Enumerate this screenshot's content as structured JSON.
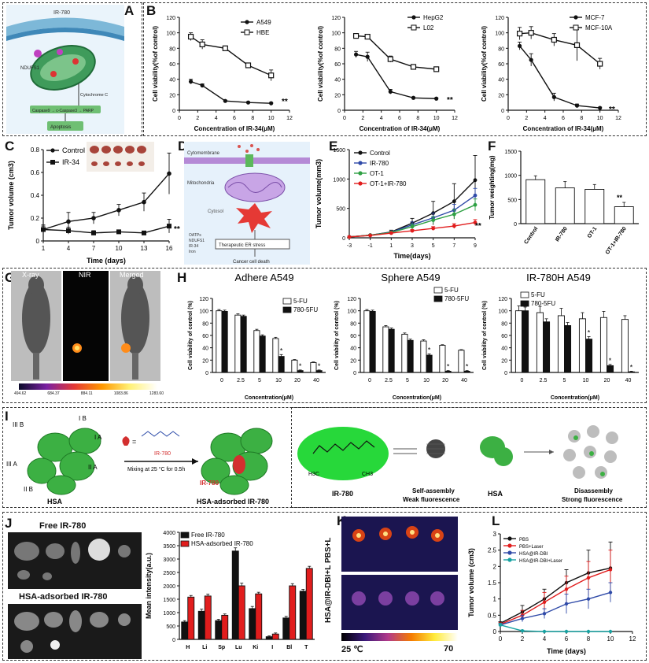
{
  "colors": {
    "black": "#111111",
    "red": "#e11d1d",
    "blue": "#2f4aa8",
    "green": "#2ea043",
    "teal": "#17a2a2",
    "darkred": "#c62828"
  },
  "panel_labels": {
    "A": "A",
    "B": "B",
    "C": "C",
    "D": "D",
    "E": "E",
    "F": "F",
    "G": "G",
    "H": "H",
    "I": "I",
    "J": "J",
    "K": "K",
    "L": "L"
  },
  "panelA": {
    "ir780": "IR-780",
    "apoptosis": "Apoptosis",
    "ndufs1": "NDUFS1",
    "cytc": "Cytochrome C",
    "casp": "Caspase9 → c-Caspase3 → PARP"
  },
  "panelD": {
    "membrane": "Cytomembrane",
    "mito": "Mitochondria",
    "cytosol": "Cytosol",
    "therapeutic": "Therapeutic ER stress",
    "death": "Cancer cell death",
    "legend": [
      "OATPs",
      "NDUFS1",
      "IR-34",
      "Iron"
    ]
  },
  "panelG": {
    "xray": "X-ray",
    "nir": "NIR",
    "merged": "Merged",
    "scale": [
      "494.62",
      "684.37",
      "884.11",
      "1083.86",
      "1283.60"
    ]
  },
  "panelI": {
    "domains": [
      "III B",
      "I B",
      "I A",
      "III A",
      "II A",
      "II B"
    ],
    "hsa": "HSA",
    "mixing": "Mixing at 25 °C for 0.5h",
    "ir780": "IR-780",
    "adsorbed": "HSA-adsorbed IR-780",
    "ir780_2": "IR-780",
    "selfassembly1": "Self-assembly",
    "selfassembly2": "Weak fluorescence",
    "hsa2": "HSA",
    "disassembly1": "Disassembly",
    "disassembly2": "Strong fluorescence",
    "h3c": "H3C",
    "ch3": "CH3",
    "eq": "="
  },
  "panelJ": {
    "free": "Free IR-780",
    "adsorbed": "HSA-adsorbed  IR-780"
  },
  "panelK": {
    "side": "HSA@IR-DBI+L PBS+L",
    "t0": "25 ℃",
    "t1": "70"
  },
  "chart_data": [
    {
      "id": "B1",
      "type": "line",
      "ylabel": "Cell viability(%of control)",
      "xlabel": "Concentration of IR-34(μM)",
      "xlim": [
        0,
        12
      ],
      "ylim": [
        0,
        120
      ],
      "xticks": [
        0,
        2,
        4,
        6,
        8,
        10,
        12
      ],
      "yticks": [
        0,
        20,
        40,
        60,
        80,
        100,
        120
      ],
      "annotation": "**",
      "series": [
        {
          "name": "A549",
          "x": [
            1.25,
            2.5,
            5,
            7.5,
            10
          ],
          "y": [
            37,
            32,
            12,
            10,
            9
          ],
          "err": [
            3,
            2,
            1,
            1,
            1
          ],
          "marker": "filled"
        },
        {
          "name": "HBE",
          "x": [
            1.25,
            2.5,
            5,
            7.5,
            10
          ],
          "y": [
            95,
            85,
            80,
            58,
            45
          ],
          "err": [
            5,
            6,
            3,
            3,
            7
          ],
          "marker": "square-open"
        }
      ]
    },
    {
      "id": "B2",
      "type": "line",
      "ylabel": "Cell viability(%of control)",
      "xlabel": "Concentration of IR-34(μM)",
      "xlim": [
        0,
        12
      ],
      "ylim": [
        0,
        120
      ],
      "xticks": [
        0,
        2,
        4,
        6,
        8,
        10,
        12
      ],
      "yticks": [
        0,
        20,
        40,
        60,
        80,
        100,
        120
      ],
      "annotation": "**",
      "series": [
        {
          "name": "HepG2",
          "x": [
            1.25,
            2.5,
            5,
            7.5,
            10
          ],
          "y": [
            72,
            69,
            24,
            16,
            15
          ],
          "err": [
            4,
            6,
            3,
            1,
            1
          ],
          "marker": "filled"
        },
        {
          "name": "L02",
          "x": [
            1.25,
            2.5,
            5,
            7.5,
            10
          ],
          "y": [
            96,
            95,
            66,
            56,
            53
          ],
          "err": [
            3,
            3,
            4,
            3,
            2
          ],
          "marker": "square-open"
        }
      ]
    },
    {
      "id": "B3",
      "type": "line",
      "ylabel": "Cell viability(%of control)",
      "xlabel": "Concentration of IR-34(μM)",
      "xlim": [
        0,
        12
      ],
      "ylim": [
        0,
        120
      ],
      "xticks": [
        0,
        2,
        4,
        6,
        8,
        10,
        12
      ],
      "yticks": [
        0,
        20,
        40,
        60,
        80,
        100,
        120
      ],
      "annotation": "**",
      "series": [
        {
          "name": "MCF-7",
          "x": [
            1.25,
            2.5,
            5,
            7.5,
            10
          ],
          "y": [
            83,
            65,
            17,
            6,
            3
          ],
          "err": [
            5,
            8,
            5,
            2,
            1
          ],
          "marker": "filled"
        },
        {
          "name": "MCF-10A",
          "x": [
            1.25,
            2.5,
            5,
            7.5,
            10
          ],
          "y": [
            99,
            100,
            91,
            84,
            60
          ],
          "err": [
            8,
            8,
            8,
            20,
            7
          ],
          "marker": "square-open"
        }
      ]
    },
    {
      "id": "C",
      "type": "line",
      "ylabel": "Tumor volume (cm3)",
      "xlabel": "Time (days)",
      "xticks": [
        1,
        4,
        7,
        10,
        13,
        16
      ],
      "xlim": [
        1,
        16
      ],
      "ylim": [
        0,
        0.8
      ],
      "yticks": [
        0,
        0.2,
        0.4,
        0.6,
        0.8
      ],
      "annotation": "**",
      "series": [
        {
          "name": "Control",
          "x": [
            1,
            4,
            7,
            10,
            13,
            16
          ],
          "y": [
            0.1,
            0.17,
            0.2,
            0.27,
            0.34,
            0.59
          ],
          "err": [
            0.03,
            0.08,
            0.05,
            0.05,
            0.08,
            0.18
          ],
          "marker": "filled"
        },
        {
          "name": "IR-34",
          "x": [
            1,
            4,
            7,
            10,
            13,
            16
          ],
          "y": [
            0.1,
            0.09,
            0.07,
            0.08,
            0.07,
            0.13
          ],
          "err": [
            0.04,
            0.03,
            0.02,
            0.01,
            0.01,
            0.06
          ],
          "marker": "square"
        }
      ]
    },
    {
      "id": "E",
      "type": "line",
      "ylabel": "Tumor volume(mm3)",
      "xlabel": "Time(days)",
      "xticks": [
        -3,
        -1,
        1,
        3,
        5,
        7,
        9
      ],
      "xlim": [
        -3,
        9
      ],
      "ylim": [
        0,
        1500
      ],
      "yticks": [
        0,
        500,
        1000,
        1500
      ],
      "annotation": "**",
      "series": [
        {
          "name": "Control",
          "color": "#111111",
          "x": [
            -3,
            -1,
            1,
            3,
            5,
            7,
            9
          ],
          "y": [
            15,
            45,
            100,
            250,
            420,
            620,
            980
          ],
          "err": [
            5,
            10,
            30,
            80,
            200,
            300,
            420
          ]
        },
        {
          "name": "IR-780",
          "color": "#2f4aa8",
          "x": [
            -3,
            -1,
            1,
            3,
            5,
            7,
            9
          ],
          "y": [
            15,
            45,
            95,
            220,
            340,
            470,
            720
          ],
          "err": [
            5,
            10,
            20,
            50,
            80,
            100,
            120
          ]
        },
        {
          "name": "OT-1",
          "color": "#2ea043",
          "x": [
            -3,
            -1,
            1,
            3,
            5,
            7,
            9
          ],
          "y": [
            15,
            45,
            90,
            190,
            300,
            400,
            560
          ],
          "err": [
            5,
            10,
            20,
            40,
            60,
            80,
            100
          ]
        },
        {
          "name": "OT-1+IR-780",
          "color": "#e11d1d",
          "x": [
            -3,
            -1,
            1,
            3,
            5,
            7,
            9
          ],
          "y": [
            15,
            40,
            80,
            120,
            160,
            200,
            260
          ],
          "err": [
            5,
            10,
            15,
            20,
            30,
            40,
            50
          ]
        }
      ]
    },
    {
      "id": "F",
      "type": "bar",
      "ylabel": "Tumor weighting(mg)",
      "categories": [
        "Control",
        "IR-780",
        "OT-1",
        "OT-1+IR-780"
      ],
      "values": [
        910,
        740,
        710,
        350
      ],
      "err": [
        80,
        130,
        100,
        90
      ],
      "ylim": [
        0,
        1500
      ],
      "yticks": [
        0,
        500,
        1000,
        1500
      ],
      "annotation": "**"
    },
    {
      "id": "H1",
      "type": "bar",
      "title": "Adhere A549",
      "ylabel": "Cell viability of control (%)",
      "xlabel": "Concentration(μM)",
      "categories": [
        "0",
        "2.5",
        "5",
        "10",
        "20",
        "40"
      ],
      "ylim": [
        0,
        120
      ],
      "yticks": [
        0,
        20,
        40,
        60,
        80,
        100,
        120
      ],
      "series": [
        {
          "name": "5-FU",
          "values": [
            100,
            93,
            68,
            55,
            20,
            16
          ],
          "err": [
            2,
            2,
            2,
            2,
            1,
            1
          ]
        },
        {
          "name": "780-5FU",
          "values": [
            99,
            91,
            59,
            26,
            3,
            3
          ],
          "err": [
            2,
            2,
            2,
            3,
            1,
            1
          ]
        }
      ],
      "stars": [
        3,
        4,
        5
      ]
    },
    {
      "id": "H2",
      "type": "bar",
      "title": "Sphere  A549",
      "ylabel": "Cell viability of control (%)",
      "xlabel": "Concentration(μM)",
      "categories": [
        "0",
        "2.5",
        "5",
        "10",
        "20",
        "40"
      ],
      "ylim": [
        0,
        120
      ],
      "yticks": [
        0,
        20,
        40,
        60,
        80,
        100,
        120
      ],
      "series": [
        {
          "name": "5-FU",
          "values": [
            100,
            74,
            62,
            51,
            44,
            36
          ],
          "err": [
            2,
            2,
            2,
            2,
            1,
            1
          ]
        },
        {
          "name": "780-5FU",
          "values": [
            99,
            70,
            52,
            28,
            2,
            2
          ],
          "err": [
            2,
            2,
            2,
            2,
            1,
            1
          ]
        }
      ],
      "stars": [
        3,
        4,
        5
      ]
    },
    {
      "id": "H3",
      "type": "bar",
      "title": "IR-780H A549",
      "ylabel": "Cell viability of control (%)",
      "xlabel": "Concentration(μM)",
      "categories": [
        "0",
        "2.5",
        "5",
        "10",
        "20",
        "40"
      ],
      "ylim": [
        0,
        120
      ],
      "yticks": [
        0,
        20,
        40,
        60,
        80,
        100,
        120
      ],
      "series": [
        {
          "name": "5-FU",
          "values": [
            100,
            97,
            92,
            87,
            89,
            86
          ],
          "err": [
            8,
            10,
            12,
            10,
            10,
            6
          ]
        },
        {
          "name": "780-5FU",
          "values": [
            100,
            82,
            76,
            54,
            11,
            1
          ],
          "err": [
            6,
            5,
            5,
            4,
            2,
            1
          ]
        }
      ],
      "stars": [
        3,
        4,
        5
      ]
    },
    {
      "id": "J",
      "type": "bar",
      "ylabel": "Mean intensity(a.u.)",
      "categories": [
        "H",
        "Li",
        "Sp",
        "Lu",
        "Ki",
        "I",
        "Bl",
        "T"
      ],
      "ylim": [
        0,
        4000
      ],
      "yticks": [
        0,
        500,
        1000,
        1500,
        2000,
        2500,
        3000,
        3500,
        4000
      ],
      "series": [
        {
          "name": "Free IR-780",
          "values": [
            650,
            1050,
            700,
            3300,
            1150,
            100,
            800,
            1800
          ],
          "err": [
            50,
            80,
            50,
            120,
            80,
            30,
            60,
            70
          ]
        },
        {
          "name": "HSA-adsorbed IR-780",
          "values": [
            1580,
            1620,
            900,
            2000,
            1700,
            200,
            2000,
            2650
          ],
          "err": [
            60,
            70,
            50,
            100,
            60,
            40,
            80,
            80
          ]
        }
      ]
    },
    {
      "id": "L",
      "type": "line",
      "ylabel": "Tumor volume (cm3)",
      "xlabel": "Time (days)",
      "xlim": [
        0,
        12
      ],
      "ylim": [
        0,
        3.0
      ],
      "xticks": [
        0,
        2,
        4,
        6,
        8,
        10,
        12
      ],
      "yticks": [
        0,
        0.5,
        1.0,
        1.5,
        2.0,
        2.5,
        3.0
      ],
      "series": [
        {
          "name": "PBS",
          "color": "#111111",
          "x": [
            0,
            2,
            4,
            6,
            8,
            10
          ],
          "y": [
            0.25,
            0.6,
            1.0,
            1.5,
            1.8,
            1.95
          ],
          "err": [
            0.05,
            0.2,
            0.3,
            0.4,
            0.7,
            0.8
          ]
        },
        {
          "name": "PBS+Laser",
          "color": "#e11d1d",
          "x": [
            0,
            2,
            4,
            6,
            8,
            10
          ],
          "y": [
            0.22,
            0.5,
            0.9,
            1.3,
            1.65,
            1.9
          ],
          "err": [
            0.05,
            0.15,
            0.3,
            0.4,
            0.5,
            0.6
          ]
        },
        {
          "name": "HSA@IR-DBI",
          "color": "#2f4aa8",
          "x": [
            0,
            2,
            4,
            6,
            8,
            10
          ],
          "y": [
            0.2,
            0.4,
            0.55,
            0.85,
            1.0,
            1.2
          ],
          "err": [
            0.05,
            0.1,
            0.15,
            0.3,
            0.3,
            0.3
          ]
        },
        {
          "name": "HSA@IR-DBI+Laser",
          "color": "#17a2a2",
          "x": [
            0,
            2,
            4,
            6,
            8,
            10
          ],
          "y": [
            0.2,
            0.02,
            0.0,
            0.0,
            0.0,
            0.0
          ],
          "err": [
            0.05,
            0.02,
            0,
            0,
            0,
            0
          ]
        }
      ]
    }
  ]
}
